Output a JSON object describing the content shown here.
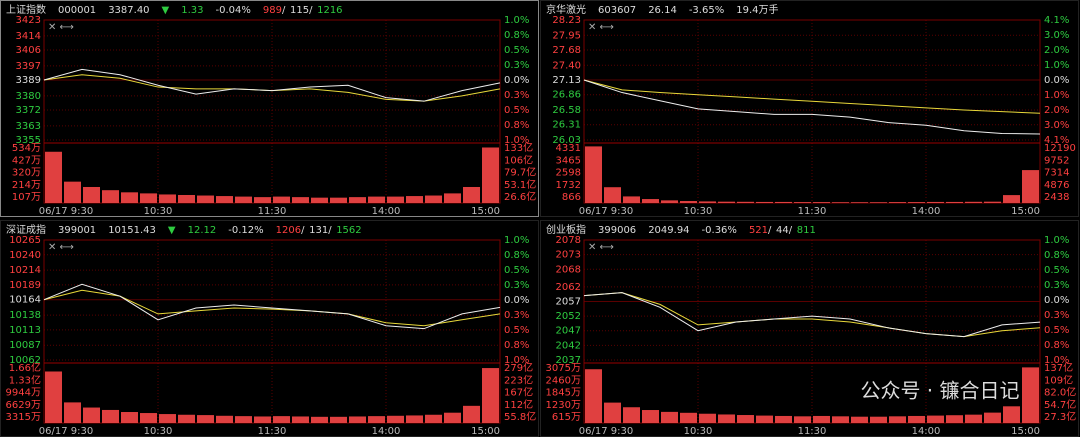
{
  "panels": [
    {
      "header": {
        "name": "上证指数",
        "code": "000001",
        "price": "3387.40",
        "arrow": "▼",
        "change": "1.33",
        "pct": "-0.04%",
        "up": "989",
        "flat": "115",
        "down": "1216"
      },
      "ylim": [
        3355,
        3423
      ],
      "price_ticks": [
        3423,
        3414,
        3406,
        3397,
        3389,
        3380,
        3372,
        3363,
        3355
      ],
      "pct_ticks": [
        "1.0%",
        "0.8%",
        "0.5%",
        "0.3%",
        "0.0%",
        "0.3%",
        "0.5%",
        "0.8%",
        "1.0%"
      ],
      "vol_ticks": [
        "534万",
        "427万",
        "320万",
        "214万",
        "107万"
      ],
      "amt_ticks": [
        "133亿",
        "106亿",
        "79.7亿",
        "53.1亿",
        "26.6亿"
      ],
      "vol_lim": [
        0,
        534
      ],
      "volume": [
        480,
        200,
        150,
        120,
        100,
        90,
        80,
        75,
        70,
        65,
        60,
        55,
        60,
        55,
        50,
        50,
        55,
        60,
        60,
        65,
        70,
        90,
        150,
        520
      ],
      "price_line": [
        3389,
        3395,
        3392,
        3386,
        3381,
        3384,
        3383,
        3385,
        3386,
        3379,
        3377,
        3383,
        3387.4
      ],
      "avg_line": [
        3389,
        3392,
        3390,
        3385,
        3384,
        3384,
        3383,
        3384,
        3382,
        3378,
        3377,
        3380,
        3384
      ],
      "times": [
        "06/17 9:30",
        "10:30",
        "11:30",
        "14:00",
        "15:00"
      ]
    },
    {
      "header": {
        "name": "京华激光",
        "code": "603607",
        "price": "26.14",
        "pct": "-3.65%",
        "extra": "19.4万手"
      },
      "ylim": [
        26.03,
        28.23
      ],
      "price_ticks": [
        28.23,
        27.95,
        27.68,
        {
          "value": 27.4,
          "label": "27.40"
        },
        27.13,
        26.86,
        26.58,
        26.31,
        26.03
      ],
      "pct_ticks": [
        "4.1%",
        "3.0%",
        "2.0%",
        "1.0%",
        "0.0%",
        "1.0%",
        "2.0%",
        "3.0%",
        "4.1%"
      ],
      "vol_ticks": [
        "4331",
        "3465",
        "2598",
        "1732",
        "866"
      ],
      "amt_ticks": [
        "12190",
        "9752",
        "7314",
        "4876",
        "2438"
      ],
      "vol_lim": [
        0,
        4331
      ],
      "volume": [
        4300,
        1200,
        500,
        300,
        200,
        150,
        120,
        100,
        90,
        80,
        80,
        70,
        70,
        60,
        60,
        60,
        70,
        70,
        80,
        80,
        90,
        100,
        600,
        2500
      ],
      "price_line": [
        27.13,
        26.9,
        26.75,
        26.6,
        26.55,
        26.5,
        26.5,
        26.45,
        26.35,
        26.3,
        26.2,
        26.15,
        26.14
      ],
      "avg_line": [
        27.13,
        26.95,
        26.9,
        26.86,
        26.82,
        26.78,
        26.74,
        26.7,
        26.66,
        26.62,
        26.58,
        26.55,
        26.52
      ],
      "times": [
        "06/17 9:30",
        "10:30",
        "11:30",
        "14:00",
        "15:00"
      ]
    },
    {
      "header": {
        "name": "深证成指",
        "code": "399001",
        "price": "10151.43",
        "arrow": "▼",
        "change": "12.12",
        "pct": "-0.12%",
        "up": "1206",
        "flat": "131",
        "down": "1562"
      },
      "ylim": [
        10062,
        10265
      ],
      "price_ticks": [
        10265,
        10240,
        10214,
        10189,
        10164,
        10138,
        10113,
        10087,
        10062
      ],
      "pct_ticks": [
        "1.0%",
        "0.8%",
        "0.5%",
        "0.3%",
        "0.0%",
        "0.3%",
        "0.5%",
        "0.8%",
        "1.0%"
      ],
      "vol_ticks": [
        "1.66亿",
        "1.33亿",
        "9944万",
        "6629万",
        "3315万"
      ],
      "amt_ticks": [
        "279亿",
        "223亿",
        "167亿",
        "112亿",
        "55.8亿"
      ],
      "vol_lim": [
        0,
        16600
      ],
      "volume": [
        15000,
        6000,
        4500,
        3800,
        3200,
        2900,
        2600,
        2400,
        2300,
        2100,
        2000,
        1900,
        2000,
        1900,
        1800,
        1800,
        1900,
        2000,
        2100,
        2200,
        2400,
        3000,
        5000,
        16000
      ],
      "price_line": [
        10164,
        10190,
        10170,
        10130,
        10150,
        10155,
        10150,
        10145,
        10140,
        10120,
        10115,
        10140,
        10151
      ],
      "avg_line": [
        10164,
        10180,
        10170,
        10140,
        10145,
        10150,
        10148,
        10145,
        10140,
        10125,
        10120,
        10130,
        10140
      ],
      "times": [
        "06/17 9:30",
        "10:30",
        "11:30",
        "14:00",
        "15:00"
      ]
    },
    {
      "header": {
        "name": "创业板指",
        "code": "399006",
        "price": "2049.94",
        "pct": "-0.36%",
        "up": "521",
        "flat": "44",
        "down": "811"
      },
      "ylim": [
        2037,
        2078
      ],
      "price_ticks": [
        2078,
        2073,
        2068,
        2062,
        2057,
        2052,
        2047,
        2042,
        2037
      ],
      "pct_ticks": [
        "1.0%",
        "0.8%",
        "0.5%",
        "0.3%",
        "0.0%",
        "0.3%",
        "0.5%",
        "0.8%",
        "1.0%"
      ],
      "vol_ticks": [
        "3075万",
        "2460万",
        "1845万",
        "1230万",
        "615万"
      ],
      "amt_ticks": [
        "137亿",
        "109亿",
        "82.0亿",
        "54.7亿",
        "27.3亿"
      ],
      "vol_lim": [
        0,
        3075
      ],
      "volume": [
        2900,
        1100,
        850,
        700,
        600,
        550,
        500,
        460,
        430,
        400,
        380,
        360,
        380,
        360,
        340,
        340,
        360,
        380,
        400,
        420,
        450,
        560,
        900,
        3000
      ],
      "price_line": [
        2059,
        2060,
        2055,
        2047,
        2050,
        2051,
        2052,
        2051,
        2048,
        2046,
        2045,
        2049,
        2049.94
      ],
      "avg_line": [
        2059,
        2060,
        2056,
        2049,
        2050,
        2051,
        2051,
        2050,
        2048,
        2046,
        2045,
        2047,
        2048
      ],
      "times": [
        "06/17 9:30",
        "10:30",
        "11:30",
        "14:00",
        "15:00"
      ]
    }
  ],
  "watermark": "公众号 · 镰合日记"
}
